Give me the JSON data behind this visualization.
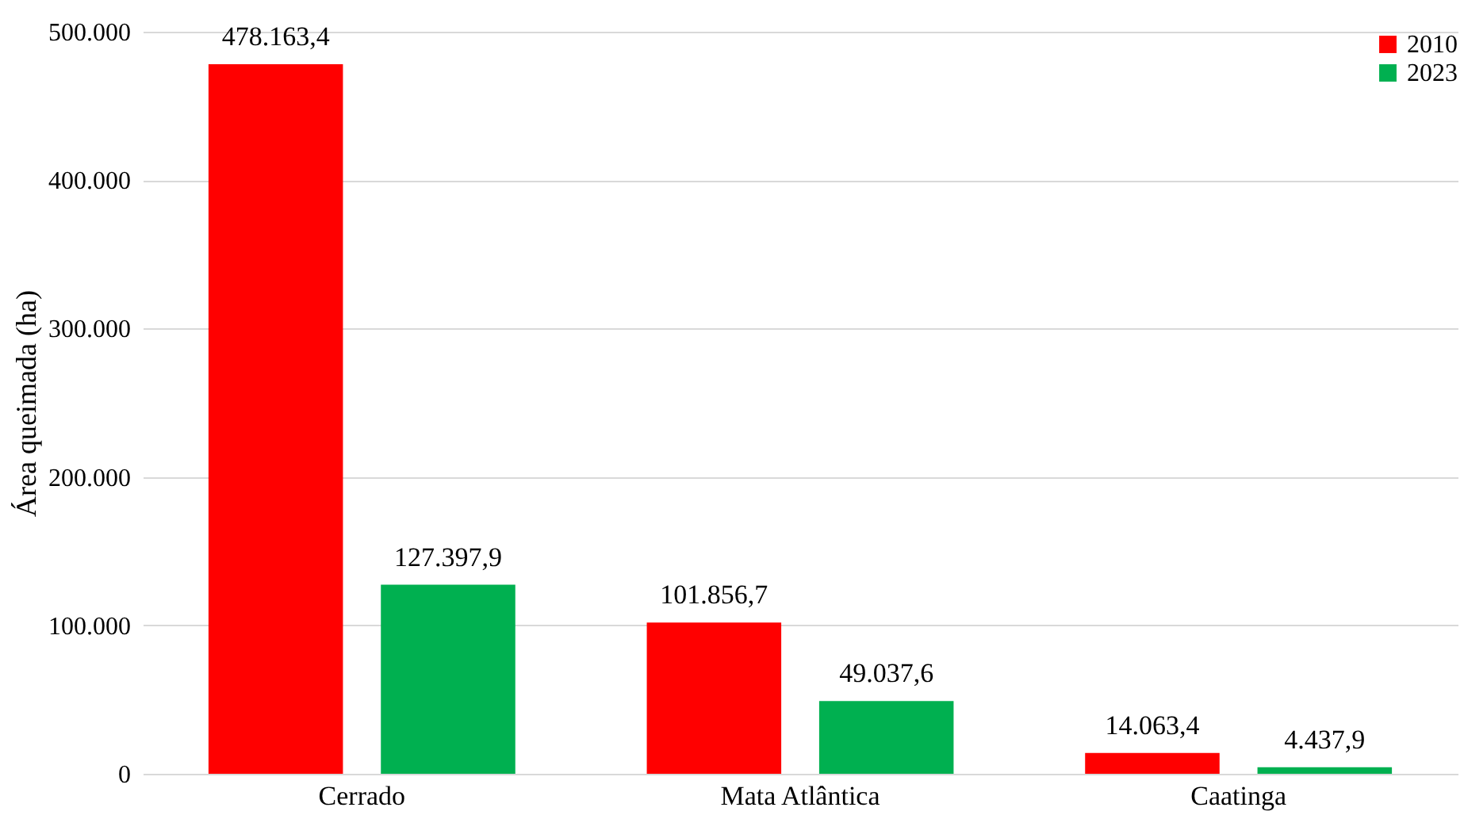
{
  "chart_data": {
    "type": "bar",
    "ylabel": "Área queimada (ha)",
    "categories": [
      "Cerrado",
      "Mata Atlântica",
      "Caatinga"
    ],
    "series": [
      {
        "name": "2010",
        "color": "#ff0000",
        "values": [
          478163.4,
          101856.7,
          14063.4
        ],
        "value_labels": [
          "478.163,4",
          "101.856,7",
          "14.063,4"
        ]
      },
      {
        "name": "2023",
        "color": "#00b050",
        "values": [
          127397.9,
          49037.6,
          4437.9
        ],
        "value_labels": [
          "127.397,9",
          "49.037,6",
          "4.437,9"
        ]
      }
    ],
    "ylim": [
      0,
      500000
    ],
    "yticks": [
      0,
      {
        "value": 100000,
        "label": "100.000"
      },
      {
        "value": 200000,
        "label": "200.000"
      },
      {
        "value": 300000,
        "label": "300.000"
      },
      {
        "value": 400000,
        "label": "400.000"
      },
      {
        "value": 500000,
        "label": "500.000"
      }
    ],
    "grid": "y",
    "legend": "top right"
  }
}
